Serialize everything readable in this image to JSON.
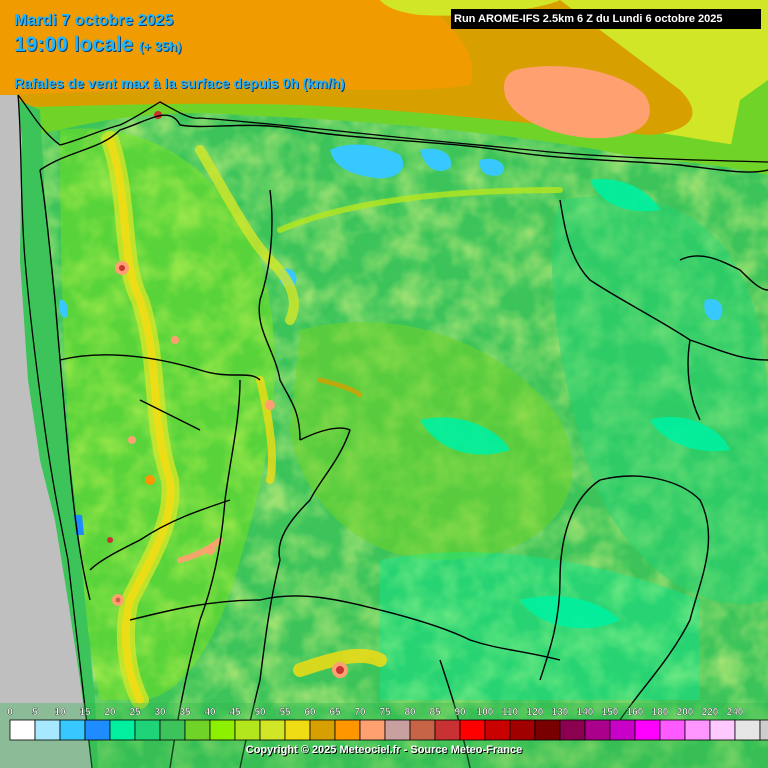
{
  "header": {
    "date": "Mardi 7 octobre 2025",
    "time": "19:00 locale",
    "lead": "(+ 35h)",
    "product": "Rafales de vent max à la surface depuis 0h (km/h)"
  },
  "run_label": "Run AROME-IFS 2.5km 6 Z du Lundi 6 octobre 2025",
  "copyright": "Copyright © 2025 Meteociel.fr - Source Meteo-France",
  "legend": {
    "labels": [
      "0",
      "5",
      "10",
      "15",
      "20",
      "25",
      "30",
      "35",
      "40",
      "45",
      "50",
      "55",
      "60",
      "65",
      "70",
      "75",
      "80",
      "85",
      "90",
      "100",
      "110",
      "120",
      "130",
      "140",
      "150",
      "160",
      "180",
      "200",
      "220",
      "240"
    ],
    "colors": [
      "#ffffff",
      "#a7e8ff",
      "#37c8ff",
      "#1e8cff",
      "#00f0a0",
      "#1fd478",
      "#3cc45a",
      "#70d428",
      "#8cf000",
      "#b4e61e",
      "#d2e628",
      "#f0dc14",
      "#d7a000",
      "#ff9600",
      "#ffa070",
      "#c8a0a0",
      "#c86446",
      "#c83232",
      "#ff0000",
      "#c80000",
      "#a00000",
      "#780000",
      "#8c0050",
      "#aa008c",
      "#c800c8",
      "#ff00ff",
      "#ff5aff",
      "#ff96ff",
      "#ffc8ff",
      "#e6e6e6",
      "#cdcdcd"
    ]
  }
}
